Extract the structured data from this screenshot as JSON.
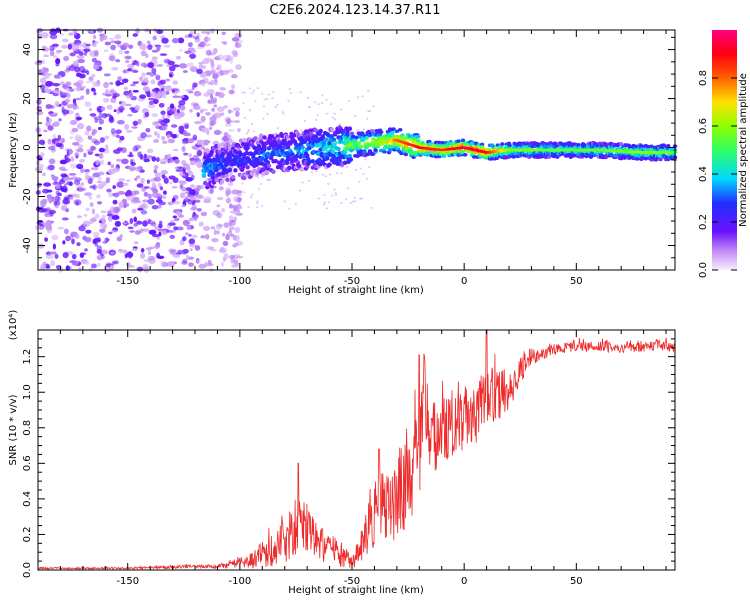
{
  "title": "C2E6.2024.123.14.37.R11",
  "colors": {
    "spectral_dot": "#7b2cff",
    "snr_line": "#ee2a2a",
    "axis": "#000000"
  },
  "colorbar": {
    "label": "Normalized spectral amplitude",
    "ticks": [
      "0.0",
      "0.2",
      "0.4",
      "0.6",
      "0.8"
    ],
    "tick_values": [
      0.0,
      0.2,
      0.4,
      0.6,
      0.8
    ],
    "range": [
      0,
      1
    ],
    "colormap": "rainbow (magenta-blue-cyan-green-yellow-red-pink)"
  },
  "chart_data": [
    {
      "type": "heatmap",
      "name": "spectrogram",
      "xlabel": "Height of straight line (km)",
      "ylabel": "Frequency (Hz)",
      "xlim": [
        -190,
        94
      ],
      "ylim": [
        -50,
        48
      ],
      "xticks": [
        "-150",
        "-100",
        "-50",
        "0",
        "50"
      ],
      "xtick_values": [
        -150,
        -100,
        -50,
        0,
        50
      ],
      "yticks": [
        "-40",
        "-20",
        "0",
        "20",
        "40"
      ],
      "ytick_values": [
        -40,
        -20,
        0,
        20,
        40
      ],
      "ridge": {
        "x": [
          -116,
          -110,
          -100,
          -90,
          -80,
          -70,
          -60,
          -50,
          -40,
          -30,
          -20,
          -10,
          0,
          10,
          20,
          40,
          60,
          80,
          94
        ],
        "frequency": [
          -10,
          -7,
          -5,
          -3,
          -2,
          -1,
          0,
          1,
          2,
          3,
          0,
          -1,
          0,
          -2,
          -1,
          -1,
          -1,
          -2,
          -2
        ],
        "amplitude": [
          0.35,
          0.3,
          0.25,
          0.3,
          0.3,
          0.35,
          0.4,
          0.55,
          0.6,
          0.75,
          0.85,
          0.8,
          0.9,
          0.85,
          0.55,
          0.5,
          0.5,
          0.55,
          0.5
        ]
      },
      "noise_region": {
        "x": [
          -190,
          -100
        ],
        "frequency": [
          -50,
          48
        ],
        "amplitude": [
          0.0,
          0.2
        ]
      }
    },
    {
      "type": "line",
      "name": "snr",
      "xlabel": "Height of straight line (km)",
      "ylabel": "SNR (10 * v/v)",
      "yscale_label": "(x10⁴)",
      "xlim": [
        -190,
        94
      ],
      "ylim": [
        0,
        1.35
      ],
      "xticks": [
        "-150",
        "-100",
        "-50",
        "0",
        "50"
      ],
      "xtick_values": [
        -150,
        -100,
        -50,
        0,
        50
      ],
      "yticks": [
        "0.0",
        "0.2",
        "0.4",
        "0.6",
        "0.8",
        "1.0",
        "1.2"
      ],
      "ytick_values": [
        0.0,
        0.2,
        0.4,
        0.6,
        0.8,
        1.0,
        1.2
      ],
      "x": [
        -190,
        -150,
        -120,
        -110,
        -100,
        -95,
        -90,
        -85,
        -80,
        -75,
        -70,
        -65,
        -60,
        -55,
        -50,
        -45,
        -40,
        -35,
        -30,
        -25,
        -20,
        -18,
        -15,
        -10,
        -5,
        0,
        5,
        10,
        15,
        20,
        25,
        30,
        40,
        50,
        60,
        70,
        80,
        90,
        94
      ],
      "y": [
        0.01,
        0.01,
        0.02,
        0.02,
        0.04,
        0.05,
        0.08,
        0.12,
        0.18,
        0.26,
        0.22,
        0.15,
        0.12,
        0.08,
        0.04,
        0.18,
        0.28,
        0.38,
        0.42,
        0.52,
        0.58,
        1.0,
        0.72,
        0.8,
        0.82,
        0.86,
        0.88,
        0.95,
        0.98,
        1.02,
        1.12,
        1.2,
        1.24,
        1.26,
        1.26,
        1.25,
        1.25,
        1.27,
        1.25
      ],
      "spread": [
        0.005,
        0.005,
        0.01,
        0.01,
        0.03,
        0.05,
        0.08,
        0.1,
        0.14,
        0.18,
        0.14,
        0.1,
        0.1,
        0.08,
        0.04,
        0.12,
        0.18,
        0.22,
        0.25,
        0.3,
        0.3,
        0.25,
        0.2,
        0.2,
        0.18,
        0.18,
        0.18,
        0.2,
        0.15,
        0.12,
        0.08,
        0.05,
        0.03,
        0.03,
        0.03,
        0.03,
        0.03,
        0.04,
        0.04
      ],
      "spikes": [
        {
          "x": 10,
          "y": 1.35
        },
        {
          "x": -20,
          "y": 1.21
        },
        {
          "x": -74,
          "y": 0.6
        },
        {
          "x": -38,
          "y": 0.68
        }
      ]
    }
  ]
}
